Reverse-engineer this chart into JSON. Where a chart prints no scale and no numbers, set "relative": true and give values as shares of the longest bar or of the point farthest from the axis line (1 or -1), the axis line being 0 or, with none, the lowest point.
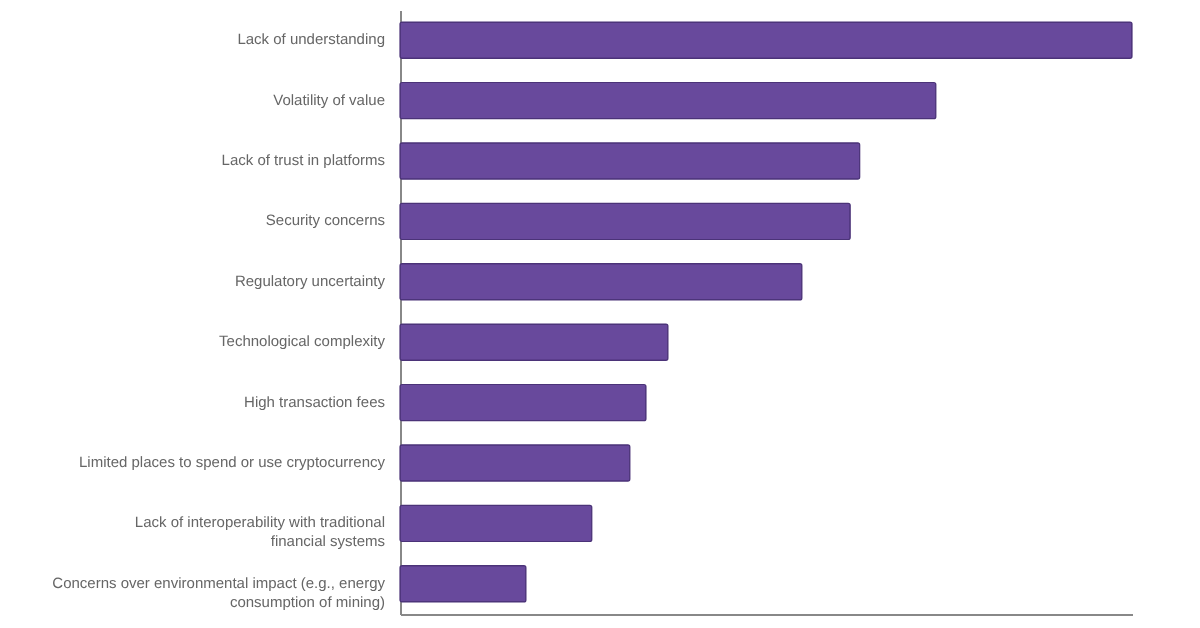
{
  "chart_data": {
    "type": "bar",
    "orientation": "horizontal",
    "relative": true,
    "categories": [
      "Lack of understanding",
      "Volatility of value",
      "Lack of trust in platforms",
      "Security concerns",
      "Regulatory uncertainty",
      "Technological complexity",
      "High transaction fees",
      "Limited places to spend or use cryptocurrency",
      "Lack of interoperability with traditional financial systems",
      "Concerns over environmental impact (e.g., energy consumption of mining)"
    ],
    "values": [
      1,
      0.732,
      0.628,
      0.615,
      0.549,
      0.366,
      0.336,
      0.314,
      0.262,
      0.172
    ],
    "color": "#68499c"
  }
}
